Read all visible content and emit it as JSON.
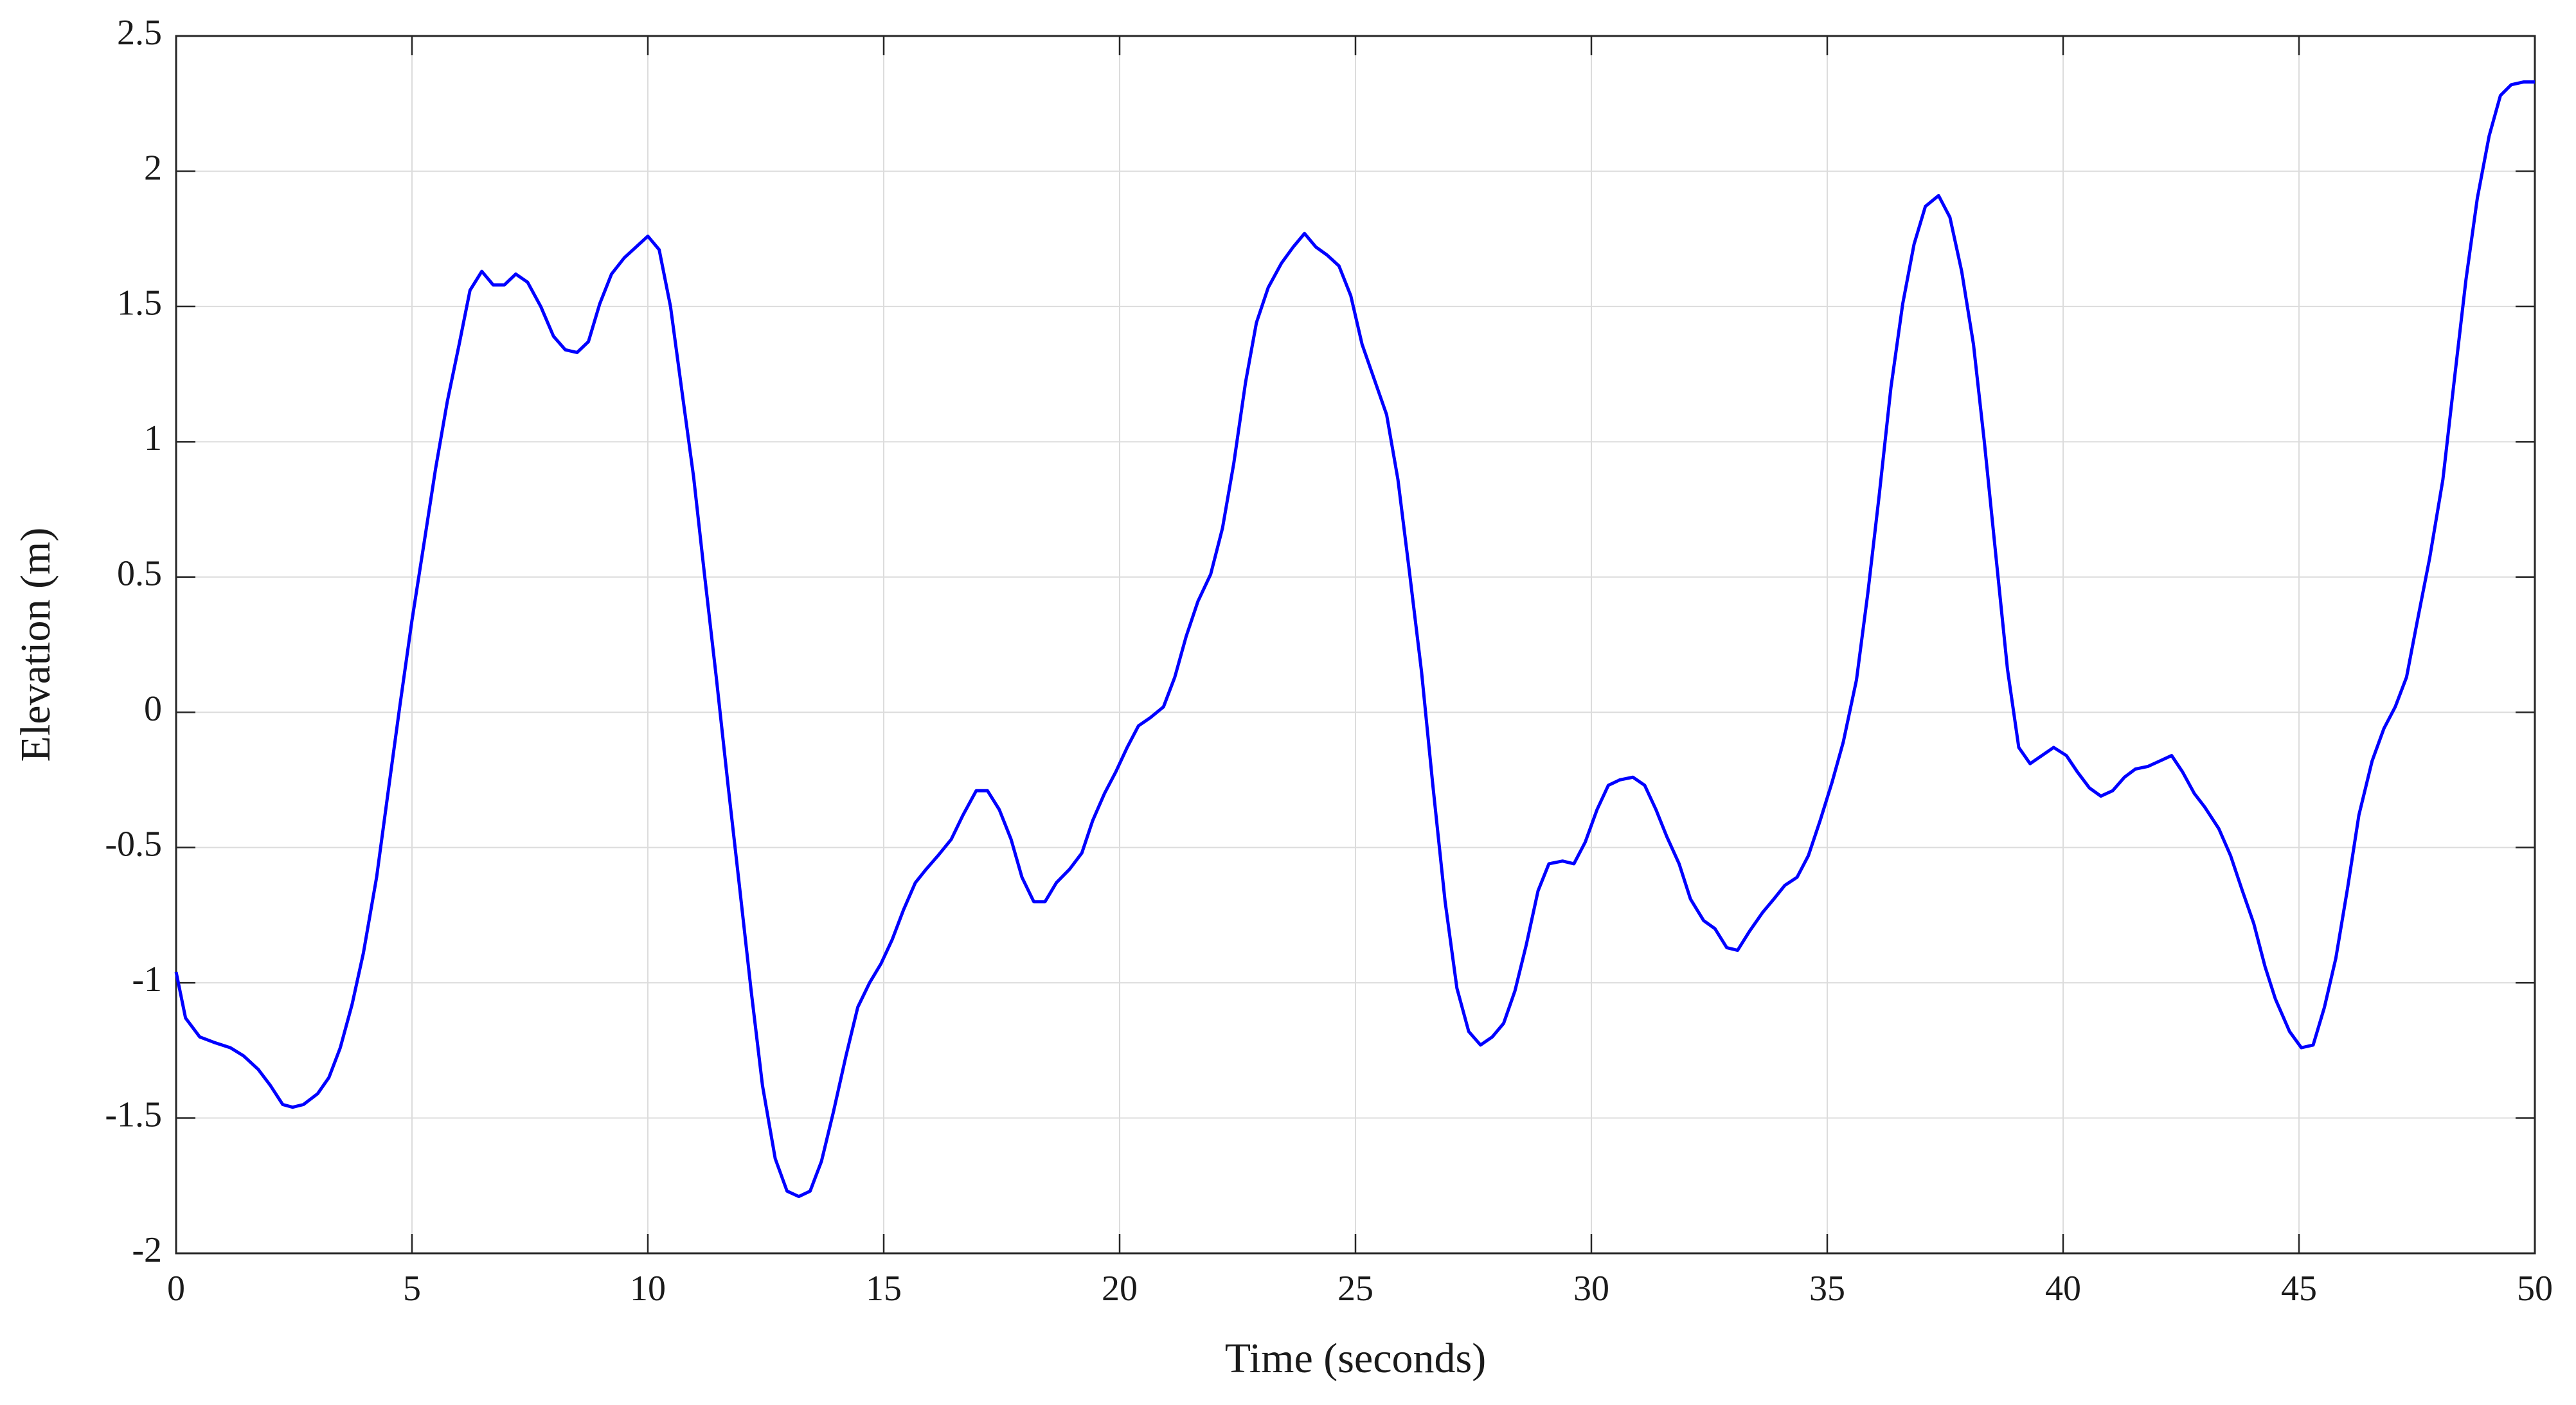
{
  "chart_data": {
    "type": "line",
    "xlabel": "Time (seconds)",
    "ylabel": "Elevation (m)",
    "x": [
      0,
      0.2,
      0.5,
      0.8,
      1.15,
      1.43,
      1.74,
      2.0,
      2.26,
      2.47,
      2.7,
      3.0,
      3.24,
      3.48,
      3.73,
      3.97,
      4.25,
      4.49,
      4.74,
      5.0,
      5.26,
      5.5,
      5.75,
      6.0,
      6.23,
      6.48,
      6.72,
      6.96,
      7.2,
      7.45,
      7.73,
      8.0,
      8.25,
      8.5,
      8.74,
      8.98,
      9.23,
      9.5,
      9.75,
      10.0,
      10.24,
      10.48,
      10.72,
      10.97,
      11.2,
      11.45,
      11.7,
      11.94,
      12.19,
      12.43,
      12.7,
      12.95,
      13.2,
      13.44,
      13.68,
      13.93,
      14.2,
      14.45,
      14.7,
      14.94,
      15.18,
      15.42,
      15.67,
      15.9,
      16.15,
      16.43,
      16.68,
      16.96,
      17.2,
      17.45,
      17.7,
      17.93,
      18.18,
      18.42,
      18.66,
      18.94,
      19.2,
      19.43,
      19.68,
      19.92,
      20.16,
      20.4,
      20.65,
      20.93,
      21.17,
      21.41,
      21.66,
      21.93,
      22.18,
      22.42,
      22.67,
      22.9,
      23.15,
      23.43,
      23.68,
      23.92,
      24.16,
      24.4,
      24.65,
      24.9,
      25.14,
      25.38,
      25.66,
      25.9,
      26.15,
      26.4,
      26.64,
      26.9,
      27.15,
      27.4,
      27.65,
      27.9,
      28.14,
      28.38,
      28.62,
      28.87,
      29.1,
      29.39,
      29.63,
      29.87,
      30.12,
      30.36,
      30.6,
      30.88,
      31.13,
      31.37,
      31.6,
      31.86,
      32.1,
      32.38,
      32.62,
      32.87,
      33.1,
      33.35,
      33.63,
      33.87,
      34.1,
      34.36,
      34.6,
      34.85,
      35.1,
      35.34,
      35.62,
      35.86,
      36.1,
      36.35,
      36.6,
      36.84,
      37.08,
      37.36,
      37.6,
      37.85,
      38.1,
      38.33,
      38.58,
      38.82,
      39.06,
      39.3,
      39.55,
      39.8,
      40.07,
      40.3,
      40.56,
      40.8,
      41.05,
      41.3,
      41.53,
      41.8,
      42.05,
      42.3,
      42.53,
      42.78,
      43.0,
      43.3,
      43.55,
      43.8,
      44.04,
      44.28,
      44.5,
      44.8,
      45.05,
      45.3,
      45.54,
      45.78,
      46.03,
      46.27,
      46.55,
      46.8,
      47.04,
      47.28,
      47.5,
      47.77,
      48.05,
      48.3,
      48.54,
      48.78,
      49.03,
      49.27,
      49.5,
      49.76,
      50
    ],
    "series": [
      {
        "name": "Elevation",
        "color": "#0000ff",
        "values": [
          -0.96,
          -1.13,
          -1.2,
          -1.22,
          -1.24,
          -1.27,
          -1.32,
          -1.38,
          -1.45,
          -1.46,
          -1.45,
          -1.41,
          -1.35,
          -1.24,
          -1.08,
          -0.89,
          -0.61,
          -0.3,
          0.02,
          0.34,
          0.63,
          0.9,
          1.15,
          1.36,
          1.56,
          1.63,
          1.58,
          1.58,
          1.62,
          1.59,
          1.5,
          1.39,
          1.34,
          1.33,
          1.37,
          1.51,
          1.62,
          1.68,
          1.72,
          1.76,
          1.71,
          1.5,
          1.19,
          0.87,
          0.51,
          0.13,
          -0.27,
          -0.64,
          -1.03,
          -1.38,
          -1.65,
          -1.77,
          -1.79,
          -1.77,
          -1.66,
          -1.48,
          -1.27,
          -1.09,
          -1.0,
          -0.93,
          -0.84,
          -0.73,
          -0.63,
          -0.58,
          -0.53,
          -0.47,
          -0.38,
          -0.29,
          -0.29,
          -0.36,
          -0.47,
          -0.61,
          -0.7,
          -0.7,
          -0.63,
          -0.58,
          -0.52,
          -0.4,
          -0.3,
          -0.22,
          -0.13,
          -0.05,
          -0.02,
          0.02,
          0.13,
          0.28,
          0.41,
          0.51,
          0.68,
          0.92,
          1.22,
          1.44,
          1.57,
          1.66,
          1.72,
          1.77,
          1.72,
          1.69,
          1.65,
          1.54,
          1.36,
          1.24,
          1.1,
          0.86,
          0.51,
          0.15,
          -0.27,
          -0.7,
          -1.02,
          -1.18,
          -1.23,
          -1.2,
          -1.15,
          -1.03,
          -0.86,
          -0.66,
          -0.56,
          -0.55,
          -0.56,
          -0.48,
          -0.36,
          -0.27,
          -0.25,
          -0.24,
          -0.27,
          -0.36,
          -0.46,
          -0.56,
          -0.69,
          -0.77,
          -0.8,
          -0.87,
          -0.88,
          -0.81,
          -0.74,
          -0.69,
          -0.64,
          -0.61,
          -0.53,
          -0.4,
          -0.26,
          -0.11,
          0.12,
          0.44,
          0.8,
          1.2,
          1.51,
          1.73,
          1.87,
          1.91,
          1.83,
          1.63,
          1.36,
          1.0,
          0.57,
          0.16,
          -0.13,
          -0.19,
          -0.16,
          -0.13,
          -0.16,
          -0.22,
          -0.28,
          -0.31,
          -0.29,
          -0.24,
          -0.21,
          -0.2,
          -0.18,
          -0.16,
          -0.22,
          -0.3,
          -0.35,
          -0.43,
          -0.53,
          -0.66,
          -0.78,
          -0.94,
          -1.06,
          -1.18,
          -1.24,
          -1.23,
          -1.09,
          -0.91,
          -0.65,
          -0.38,
          -0.18,
          -0.06,
          0.02,
          0.13,
          0.33,
          0.57,
          0.86,
          1.24,
          1.6,
          1.9,
          2.13,
          2.28,
          2.32,
          2.33,
          2.33
        ]
      }
    ],
    "xlim": [
      0,
      50
    ],
    "xticks": [
      0,
      5,
      10,
      15,
      20,
      25,
      30,
      35,
      40,
      45,
      50
    ],
    "ylim": [
      -2,
      2.5
    ],
    "yticks": [
      -2,
      -1.5,
      -1,
      -0.5,
      0,
      0.5,
      1,
      1.5,
      2,
      2.5
    ],
    "grid": true
  }
}
